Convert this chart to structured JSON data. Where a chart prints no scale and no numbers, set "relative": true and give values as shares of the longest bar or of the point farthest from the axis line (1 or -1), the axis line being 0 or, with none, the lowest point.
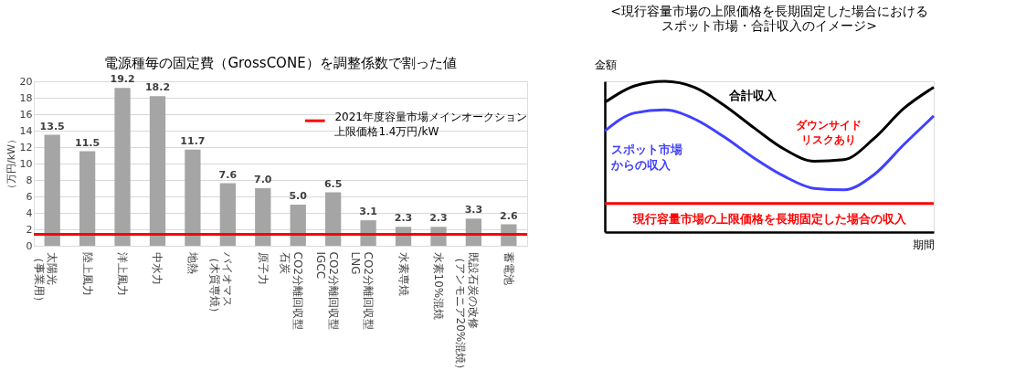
{
  "chart_data": [
    {
      "type": "bar",
      "title": "電源種毎の固定費（GrossCONE）を調整係数で割った値",
      "ylabel": "（万円/kW）",
      "categories": [
        "太陽光（事業用）",
        "陸上風力",
        "洋上風力",
        "中水力",
        "地熱",
        "バイオマス（木質専焼）",
        "原子力",
        "CO2分離回収型石炭",
        "CO2分離回収型IGCC",
        "CO2分離回収型LNG",
        "水素専焼",
        "水素10%混焼",
        "既設石炭の改修（アンモニア20%混焼）",
        "蓄電池"
      ],
      "values": [
        13.5,
        11.5,
        19.2,
        18.2,
        11.7,
        7.6,
        7.0,
        5.0,
        6.5,
        3.1,
        2.3,
        2.3,
        3.3,
        2.6
      ],
      "color": "#a5a5a5",
      "ylim": [
        0,
        20
      ],
      "yticks": [
        0,
        2,
        4,
        6,
        8,
        10,
        12,
        14,
        16,
        18,
        20
      ],
      "grid": "y",
      "value_labels": [
        "13.5",
        "11.5",
        "19.2",
        "18.2",
        "11.7",
        "7.6",
        "7.0",
        "5.0",
        "6.5",
        "3.1",
        "2.3",
        "2.3",
        "3.3",
        "2.6"
      ],
      "ref_lines": [
        {
          "axis": "y",
          "value": 1.4,
          "label": "2021年度容量市場メインオークション上限価格1.4万円/kW",
          "color": "#ff0000"
        }
      ]
    },
    {
      "type": "line",
      "relative": true,
      "title": "<現行容量市場の上限価格を長期固定した場合におけるスポット市場・合計収入のイメージ>",
      "xlabel": "期間",
      "ylabel": "金額",
      "categories": [
        null,
        null,
        null,
        null,
        null,
        null,
        null,
        null,
        null,
        null,
        null,
        null
      ],
      "series": [
        {
          "name": "合計収入",
          "color": "#000000",
          "values": [
            0.86,
            0.97,
            1.0,
            0.96,
            0.84,
            0.69,
            0.55,
            0.47,
            0.48,
            0.62,
            0.82,
            0.96
          ]
        },
        {
          "name": "スポット市場からの収入",
          "color": "#4040ff",
          "values": [
            0.67,
            0.79,
            0.81,
            0.75,
            0.63,
            0.49,
            0.37,
            0.29,
            0.28,
            0.38,
            0.58,
            0.77
          ]
        },
        {
          "name": "現行容量市場の上限価格を長期固定した場合の収入",
          "color": "#ff0000",
          "values": [
            0.19,
            0.19,
            0.19,
            0.19,
            0.19,
            0.19,
            0.19,
            0.19,
            0.19,
            0.19,
            0.19,
            0.19
          ]
        }
      ],
      "legend": false,
      "annotations": [
        "ダウンサイドリスクあり"
      ]
    }
  ]
}
